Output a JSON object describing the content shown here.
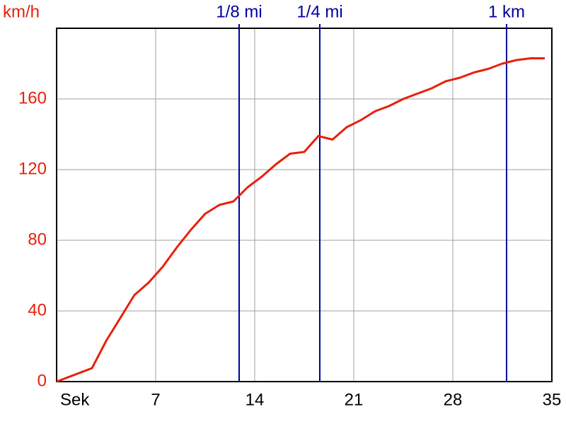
{
  "chart_data": {
    "type": "line",
    "y_label": "km/h",
    "x": [
      0,
      2.5,
      3.5,
      5.5,
      6.5,
      7.5,
      8.5,
      9.5,
      10.5,
      11.5,
      12.5,
      13.5,
      14.5,
      15.5,
      16.5,
      17.5,
      18.5,
      19.5,
      20.5,
      21.5,
      22.5,
      23.5,
      24.5,
      25.5,
      26.5,
      27.5,
      28.5,
      29.5,
      30.5,
      31.5,
      32.5,
      33.5,
      34.5
    ],
    "values": [
      0,
      7.6,
      23,
      49,
      56,
      65,
      76,
      86,
      95,
      100,
      102,
      110,
      116,
      123,
      129,
      130,
      139,
      137,
      144,
      148,
      153,
      156,
      160,
      163,
      166,
      170,
      172,
      175,
      177,
      180,
      182,
      183,
      183
    ],
    "color": "#e8200a",
    "xlim": [
      0,
      35
    ],
    "xticks": [
      {
        "value": 0,
        "label": "Sek"
      },
      7,
      14,
      21,
      28,
      35
    ],
    "ylim": [
      0,
      200
    ],
    "yticks": [
      0,
      40,
      80,
      120,
      160
    ],
    "grid": true,
    "annotations": [
      {
        "x": 12.9,
        "label": "1/8 mi"
      },
      {
        "x": 18.6,
        "label": "1/4 mi"
      },
      {
        "x": 31.8,
        "label": "1 km"
      }
    ],
    "annotation_color": "#0000a0"
  }
}
